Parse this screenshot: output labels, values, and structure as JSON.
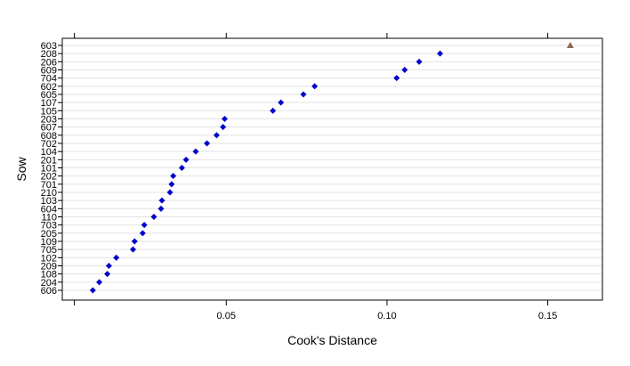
{
  "chart_data": {
    "type": "scatter",
    "xlabel": "Cook's Distance",
    "ylabel": "Sow",
    "xlim": [
      -0.001,
      0.167
    ],
    "xticks": [
      0.05,
      0.1,
      0.15
    ],
    "xtick_labels": [
      "0.05",
      "0.10",
      "0.15"
    ],
    "grid": true,
    "marker_color": "#0000cc",
    "highlight_color": "#8b6a55",
    "categories": [
      "606",
      "204",
      "108",
      "209",
      "102",
      "705",
      "109",
      "205",
      "703",
      "110",
      "604",
      "103",
      "210",
      "701",
      "202",
      "101",
      "201",
      "104",
      "702",
      "608",
      "607",
      "203",
      "105",
      "107",
      "605",
      "602",
      "704",
      "609",
      "206",
      "208",
      "603"
    ],
    "values": [
      0.0085,
      0.0105,
      0.013,
      0.0135,
      0.0158,
      0.021,
      0.0215,
      0.024,
      0.0245,
      0.0275,
      0.0297,
      0.03,
      0.0325,
      0.033,
      0.0335,
      0.0362,
      0.0375,
      0.0405,
      0.044,
      0.047,
      0.049,
      0.0495,
      0.0645,
      0.067,
      0.074,
      0.0775,
      0.103,
      0.1055,
      0.11,
      0.1165,
      0.157
    ],
    "highlight": [
      "603"
    ]
  }
}
